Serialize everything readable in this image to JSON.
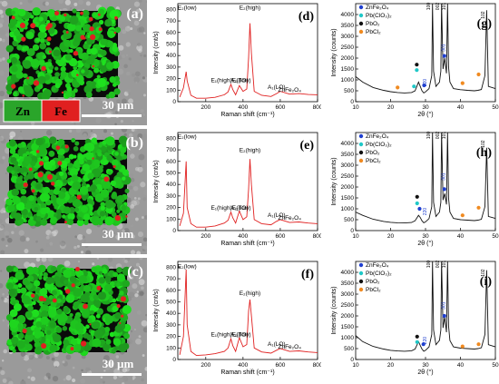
{
  "figure": {
    "map_panels": [
      {
        "label": "(a)",
        "scale": "30 µm",
        "legend": [
          "Zn",
          "Fe"
        ],
        "legend_colors": [
          "#2aa52a",
          "#e02020"
        ]
      },
      {
        "label": "(b)",
        "scale": "30 µm"
      },
      {
        "label": "(c)",
        "scale": "30 µm"
      }
    ],
    "raman_panels": [
      {
        "label": "(d)"
      },
      {
        "label": "(e)"
      },
      {
        "label": "(f)"
      }
    ],
    "xrd_panels": [
      {
        "label": "(g)"
      },
      {
        "label": "(h)"
      },
      {
        "label": "(i)"
      }
    ],
    "colors": {
      "zn": "#2aa52a",
      "fe": "#e02020",
      "raman_line": "#e02020",
      "sem_bg": "#9a9a9a"
    }
  },
  "chart_data": [
    {
      "type": "line",
      "label": "(d)",
      "xlabel": "Raman shift (cm⁻¹)",
      "ylabel": "Intensity (cnt/s)",
      "xlim": [
        50,
        800
      ],
      "ylim": [
        0,
        850
      ],
      "xticks": [
        200,
        400,
        600,
        800
      ],
      "yticks": [
        0,
        100,
        200,
        300,
        400,
        500,
        600,
        700,
        800
      ],
      "series": [
        {
          "x": [
            60,
            80,
            95,
            100,
            120,
            150,
            200,
            250,
            300,
            320,
            335,
            345,
            360,
            380,
            400,
            420,
            430,
            437,
            445,
            460,
            500,
            550,
            580,
            600,
            650,
            700,
            750,
            800
          ],
          "y": [
            40,
            120,
            260,
            180,
            55,
            30,
            30,
            38,
            60,
            85,
            150,
            105,
            60,
            140,
            90,
            110,
            380,
            680,
            420,
            90,
            55,
            45,
            70,
            90,
            65,
            70,
            62,
            60
          ]
        }
      ],
      "annotations": [
        {
          "text": "E₂(low)",
          "x": 100,
          "y": 800
        },
        {
          "text": "E₂(high)",
          "x": 437,
          "y": 800
        },
        {
          "text": "E₁(high)E₂(low)",
          "x": 335,
          "y": 170
        },
        {
          "text": "A₁(TO)",
          "x": 380,
          "y": 170
        },
        {
          "text": "A₁(LO)",
          "x": 580,
          "y": 110
        },
        {
          "text": "ZnFe₂O₄",
          "x": 650,
          "y": 85
        }
      ]
    },
    {
      "type": "line",
      "label": "(e)",
      "xlabel": "Raman shift (cm⁻¹)",
      "ylabel": "Intensity (cnt/s)",
      "xlim": [
        50,
        800
      ],
      "ylim": [
        0,
        850
      ],
      "xticks": [
        200,
        400,
        600,
        800
      ],
      "yticks": [
        0,
        100,
        200,
        300,
        400,
        500,
        600,
        700,
        800
      ],
      "series": [
        {
          "x": [
            60,
            80,
            95,
            100,
            120,
            150,
            200,
            250,
            300,
            320,
            335,
            345,
            360,
            380,
            400,
            420,
            430,
            437,
            445,
            460,
            500,
            550,
            580,
            600,
            650,
            700,
            750,
            800
          ],
          "y": [
            40,
            150,
            600,
            200,
            60,
            30,
            30,
            40,
            65,
            90,
            160,
            110,
            65,
            170,
            95,
            120,
            360,
            620,
            400,
            95,
            60,
            50,
            80,
            95,
            70,
            75,
            65,
            60
          ]
        }
      ],
      "annotations": [
        {
          "text": "E₂(low)",
          "x": 100,
          "y": 800
        },
        {
          "text": "E₂(high)",
          "x": 437,
          "y": 680
        },
        {
          "text": "E₁(high)E₂(low)",
          "x": 335,
          "y": 180
        },
        {
          "text": "A₁(TO)",
          "x": 380,
          "y": 180
        },
        {
          "text": "A₁(LO)",
          "x": 580,
          "y": 120
        },
        {
          "text": "ZnFe₂O₄",
          "x": 650,
          "y": 95
        }
      ]
    },
    {
      "type": "line",
      "label": "(f)",
      "xlabel": "Raman shift (cm⁻¹)",
      "ylabel": "Intensity (cnt/s)",
      "xlim": [
        50,
        800
      ],
      "ylim": [
        0,
        850
      ],
      "xticks": [
        200,
        400,
        600,
        800
      ],
      "yticks": [
        0,
        100,
        200,
        300,
        400,
        500,
        600,
        700,
        800
      ],
      "series": [
        {
          "x": [
            60,
            80,
            95,
            100,
            120,
            150,
            200,
            250,
            300,
            320,
            335,
            345,
            360,
            380,
            400,
            420,
            430,
            437,
            445,
            460,
            500,
            550,
            580,
            600,
            650,
            700,
            750,
            800
          ],
          "y": [
            40,
            200,
            780,
            300,
            70,
            35,
            40,
            50,
            70,
            100,
            180,
            120,
            70,
            190,
            110,
            130,
            420,
            520,
            380,
            100,
            65,
            55,
            80,
            95,
            70,
            75,
            65,
            60
          ]
        }
      ],
      "annotations": [
        {
          "text": "E₂(low)",
          "x": 100,
          "y": 790
        },
        {
          "text": "E₂(high)",
          "x": 437,
          "y": 560
        },
        {
          "text": "E₁(high)E₂(low)",
          "x": 335,
          "y": 200
        },
        {
          "text": "A₁(TO)",
          "x": 380,
          "y": 200
        },
        {
          "text": "A₁(LO)",
          "x": 580,
          "y": 120
        },
        {
          "text": "ZnFe₂O₄",
          "x": 650,
          "y": 95
        }
      ]
    },
    {
      "type": "line",
      "label": "(g)",
      "xlabel": "2θ (°)",
      "ylabel": "Intensity (counts)",
      "xlim": [
        10,
        50
      ],
      "ylim": [
        0,
        4500
      ],
      "xticks": [
        10,
        20,
        30,
        40,
        50
      ],
      "yticks": [
        0,
        500,
        1000,
        1500,
        2000,
        2500,
        3000,
        3500,
        4000
      ],
      "legend": [
        "ZnFe₂O₄",
        "Pb(ClO₃)₂",
        "PbO₂",
        "PbCl₂"
      ],
      "legend_colors": [
        "#1f3fd0",
        "#20c8c8",
        "#111111",
        "#f08a20"
      ],
      "series": [
        {
          "x": [
            10,
            12,
            15,
            18,
            20,
            22,
            24,
            26,
            27,
            28,
            28.5,
            29,
            29.5,
            30,
            31,
            31.8,
            32,
            32.3,
            33,
            34,
            34.4,
            34.6,
            35,
            35.5,
            36,
            36.3,
            36.6,
            37,
            38,
            40,
            42,
            44,
            45,
            46,
            47,
            47.5,
            48,
            50
          ],
          "y": [
            1150,
            900,
            650,
            520,
            460,
            420,
            400,
            420,
            500,
            900,
            700,
            500,
            400,
            450,
            600,
            1200,
            4500,
            1400,
            700,
            900,
            1400,
            4500,
            1500,
            2000,
            1300,
            4500,
            1600,
            900,
            600,
            550,
            520,
            500,
            520,
            560,
            1200,
            4200,
            700,
            600
          ]
        }
      ],
      "peak_labels": [
        "100",
        "002",
        "101",
        "102",
        "220",
        "301"
      ],
      "markers": [
        {
          "color": "#111111",
          "x": 27.5,
          "y": 1700
        },
        {
          "color": "#20c8c8",
          "x": 27.5,
          "y": 1450
        },
        {
          "color": "#f08a20",
          "x": 22,
          "y": 650
        },
        {
          "color": "#20c8c8",
          "x": 26.7,
          "y": 700
        },
        {
          "color": "#1f3fd0",
          "x": 29.6,
          "y": 750
        },
        {
          "color": "#1f3fd0",
          "x": 35.4,
          "y": 2100
        },
        {
          "color": "#f08a20",
          "x": 40.6,
          "y": 850
        },
        {
          "color": "#f08a20",
          "x": 45.2,
          "y": 1250
        }
      ]
    },
    {
      "type": "line",
      "label": "(h)",
      "xlabel": "2θ (°)",
      "ylabel": "Intensity (counts)",
      "xlim": [
        10,
        50
      ],
      "ylim": [
        0,
        4500
      ],
      "xticks": [
        10,
        20,
        30,
        40,
        50
      ],
      "yticks": [
        0,
        500,
        1000,
        1500,
        2000,
        2500,
        3000,
        3500,
        4000
      ],
      "legend": [
        "ZnFe₂O₄",
        "Pb(ClO₃)₂",
        "PbO₂",
        "PbCl₂"
      ],
      "legend_colors": [
        "#1f3fd0",
        "#20c8c8",
        "#111111",
        "#f08a20"
      ],
      "series": [
        {
          "x": [
            10,
            12,
            15,
            18,
            20,
            22,
            24,
            26,
            27,
            28,
            28.5,
            29,
            29.5,
            30,
            31,
            31.8,
            32,
            32.3,
            33,
            34,
            34.4,
            34.6,
            35,
            35.5,
            36,
            36.3,
            36.6,
            37,
            38,
            40,
            42,
            44,
            45,
            46,
            47,
            47.5,
            48,
            50
          ],
          "y": [
            850,
            700,
            520,
            420,
            380,
            360,
            350,
            370,
            450,
            700,
            600,
            450,
            360,
            400,
            550,
            1100,
            4500,
            1300,
            650,
            850,
            1300,
            4500,
            1400,
            1700,
            1200,
            4500,
            1500,
            850,
            560,
            500,
            480,
            460,
            480,
            520,
            1100,
            3800,
            650,
            560
          ]
        }
      ],
      "peak_labels": [
        "100",
        "002",
        "101",
        "102",
        "220",
        "301"
      ],
      "markers": [
        {
          "color": "#111111",
          "x": 27.6,
          "y": 1550
        },
        {
          "color": "#20c8c8",
          "x": 27.6,
          "y": 1250
        },
        {
          "color": "#1f3fd0",
          "x": 28.3,
          "y": 1000
        },
        {
          "color": "#1f3fd0",
          "x": 35.4,
          "y": 1900
        },
        {
          "color": "#f08a20",
          "x": 40.6,
          "y": 700
        },
        {
          "color": "#f08a20",
          "x": 45.2,
          "y": 1050
        }
      ]
    },
    {
      "type": "line",
      "label": "(i)",
      "xlabel": "2θ (°)",
      "ylabel": "Intensity (counts)",
      "xlim": [
        10,
        50
      ],
      "ylim": [
        0,
        4500
      ],
      "xticks": [
        10,
        20,
        30,
        40,
        50
      ],
      "yticks": [
        0,
        500,
        1000,
        1500,
        2000,
        2500,
        3000,
        3500,
        4000
      ],
      "legend": [
        "ZnFe₂O₄",
        "Pb(ClO₃)₂",
        "PbO₂",
        "PbCl₂"
      ],
      "legend_colors": [
        "#1f3fd0",
        "#20c8c8",
        "#111111",
        "#f08a20"
      ],
      "series": [
        {
          "x": [
            10,
            12,
            15,
            18,
            20,
            22,
            24,
            26,
            27,
            28,
            28.5,
            29,
            29.5,
            30,
            31,
            31.8,
            32,
            32.3,
            33,
            34,
            34.4,
            34.6,
            35,
            35.5,
            36,
            36.3,
            36.6,
            37,
            38,
            40,
            42,
            44,
            45,
            46,
            47,
            47.5,
            48,
            50
          ],
          "y": [
            1100,
            820,
            600,
            480,
            420,
            390,
            380,
            400,
            480,
            820,
            640,
            480,
            380,
            420,
            580,
            1150,
            4500,
            1350,
            680,
            880,
            1350,
            4500,
            1450,
            1950,
            1250,
            4500,
            1550,
            870,
            580,
            520,
            500,
            480,
            500,
            540,
            1150,
            4100,
            680,
            580
          ]
        }
      ],
      "peak_labels": [
        "100",
        "002",
        "101",
        "102",
        "220",
        "301"
      ],
      "markers": [
        {
          "color": "#111111",
          "x": 27.6,
          "y": 1050
        },
        {
          "color": "#20c8c8",
          "x": 27.6,
          "y": 800
        },
        {
          "color": "#1f3fd0",
          "x": 29.4,
          "y": 700
        },
        {
          "color": "#1f3fd0",
          "x": 35.4,
          "y": 2000
        },
        {
          "color": "#f08a20",
          "x": 40.6,
          "y": 600
        },
        {
          "color": "#f08a20",
          "x": 45.2,
          "y": 700
        }
      ]
    }
  ]
}
